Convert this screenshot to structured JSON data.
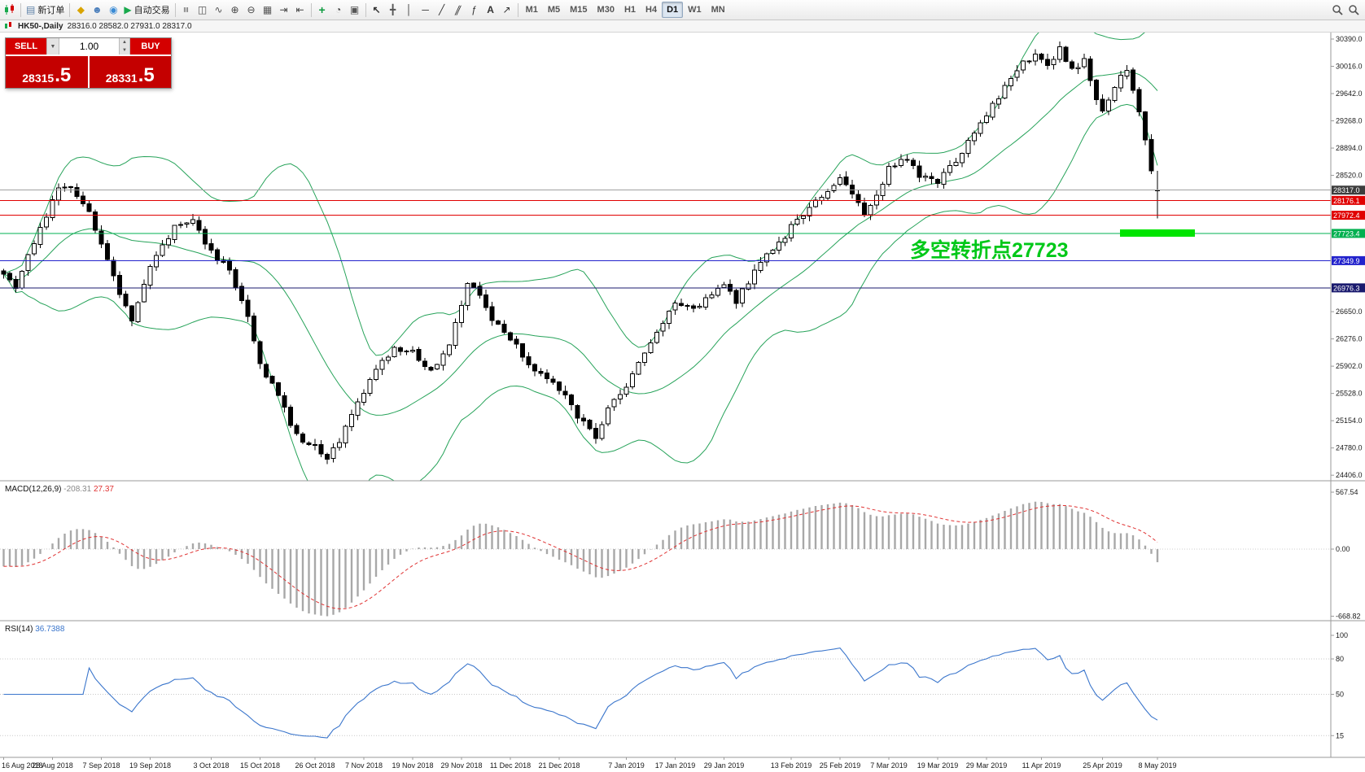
{
  "header": {
    "symbol_title": "HK50-,Daily",
    "ohlc_text": "28316.0 28582.0 27931.0 28317.0"
  },
  "toolbar": {
    "icon_groups": [
      [
        {
          "name": "new-order-button",
          "icon": "new-order",
          "label": "新订单"
        }
      ],
      [
        {
          "name": "metaeditor-icon",
          "icon": "metaeditor"
        },
        {
          "name": "profile-icon",
          "icon": "profile"
        },
        {
          "name": "support-icon",
          "icon": "support"
        },
        {
          "name": "autotrading-button",
          "icon": "autotrading",
          "label": "自动交易"
        }
      ],
      [
        {
          "name": "bar-chart-icon",
          "icon": "bar-chart"
        },
        {
          "name": "candlestick-chart-icon",
          "icon": "candle-chart"
        },
        {
          "name": "line-chart-icon",
          "icon": "line-chart"
        },
        {
          "name": "zoom-in-icon",
          "icon": "zoom-in"
        },
        {
          "name": "zoom-out-icon",
          "icon": "zoom-out"
        },
        {
          "name": "tile-windows-icon",
          "icon": "tile"
        },
        {
          "name": "auto-scroll-icon",
          "icon": "autoscroll"
        },
        {
          "name": "chart-shift-icon",
          "icon": "shift"
        }
      ],
      [
        {
          "name": "indicators-icon",
          "icon": "indicators"
        },
        {
          "name": "periods-icon",
          "icon": "periods"
        },
        {
          "name": "templates-icon",
          "icon": "templates"
        }
      ],
      [
        {
          "name": "cursor-icon",
          "icon": "cursor"
        },
        {
          "name": "crosshair-icon",
          "icon": "crosshair"
        },
        {
          "name": "vertical-line-icon",
          "icon": "vline"
        },
        {
          "name": "horizontal-line-icon",
          "icon": "hline"
        },
        {
          "name": "trendline-icon",
          "icon": "trendline"
        },
        {
          "name": "channel-icon",
          "icon": "channel"
        },
        {
          "name": "fibonacci-icon",
          "icon": "fibonacci"
        },
        {
          "name": "text-icon",
          "icon": "text"
        },
        {
          "name": "arrows-icon",
          "icon": "arrows"
        }
      ]
    ],
    "timeframes": [
      "M1",
      "M5",
      "M15",
      "M30",
      "H1",
      "H4",
      "D1",
      "W1",
      "MN"
    ],
    "active_timeframe": "D1",
    "right_icons": [
      {
        "name": "search-icon"
      },
      {
        "name": "quick-search-icon"
      }
    ]
  },
  "trade_panel": {
    "sell_label": "SELL",
    "buy_label": "BUY",
    "volume": "1.00",
    "caret_glyph": "▼",
    "spin_up_glyph": "▲",
    "spin_down_glyph": "▼",
    "sell_price_main": "28315",
    "sell_price_frac": ".5",
    "buy_price_main": "28331",
    "buy_price_frac": ".5"
  },
  "price_axis": {
    "plain_labels": [
      [
        "30390.0",
        30390
      ],
      [
        "30016.0",
        30016
      ],
      [
        "29642.0",
        29642
      ],
      [
        "29268.0",
        29268
      ],
      [
        "28894.0",
        28894
      ],
      [
        "28520.0",
        28520
      ],
      [
        "26650.0",
        26650
      ],
      [
        "26276.0",
        26276
      ],
      [
        "25902.0",
        25902
      ],
      [
        "25528.0",
        25528
      ],
      [
        "25154.0",
        25154
      ],
      [
        "24780.0",
        24780
      ],
      [
        "24406.0",
        24406
      ]
    ]
  },
  "hlines": [
    {
      "name": "current-price-line",
      "label": "28317.0",
      "price": 28317.0,
      "line_color": "#a0a0a0",
      "badge_color": "#3d3d3d"
    },
    {
      "name": "resistance-line-1",
      "label": "28176.1",
      "price": 28176.1,
      "line_color": "#e00000",
      "badge_color": "#e00000"
    },
    {
      "name": "resistance-line-2",
      "label": "27972.4",
      "price": 27972.4,
      "line_color": "#e00000",
      "badge_color": "#e00000"
    },
    {
      "name": "pivot-line",
      "label": "27723.4",
      "price": 27723.4,
      "line_color": "#00b050",
      "badge_color": "#00b050"
    },
    {
      "name": "support-line-1",
      "label": "27349.9",
      "price": 27349.9,
      "line_color": "#2222cc",
      "badge_color": "#2222cc"
    },
    {
      "name": "support-line-2",
      "label": "26976.3",
      "price": 26976.3,
      "line_color": "#1a1a6e",
      "badge_color": "#1a1a6e"
    }
  ],
  "annotation": {
    "text": "多空转折点27723",
    "color": "#00c818"
  },
  "highlight": {
    "color": "#00e400",
    "price": 27790
  },
  "date_axis": {
    "ticks": [
      [
        0,
        "16 Aug 2018"
      ],
      [
        8,
        "28 Aug 2018"
      ],
      [
        16,
        "7 Sep 2018"
      ],
      [
        24,
        "19 Sep 2018"
      ],
      [
        34,
        "3 Oct 2018"
      ],
      [
        42,
        "15 Oct 2018"
      ],
      [
        51,
        "26 Oct 2018"
      ],
      [
        59,
        "7 Nov 2018"
      ],
      [
        67,
        "19 Nov 2018"
      ],
      [
        75,
        "29 Nov 2018"
      ],
      [
        83,
        "11 Dec 2018"
      ],
      [
        91,
        "21 Dec 2018"
      ],
      [
        102,
        "7 Jan 2019"
      ],
      [
        110,
        "17 Jan 2019"
      ],
      [
        118,
        "29 Jan 2019"
      ],
      [
        129,
        "13 Feb 2019"
      ],
      [
        137,
        "25 Feb 2019"
      ],
      [
        145,
        "7 Mar 2019"
      ],
      [
        153,
        "19 Mar 2019"
      ],
      [
        161,
        "29 Mar 2019"
      ],
      [
        170,
        "11 Apr 2019"
      ],
      [
        180,
        "25 Apr 2019"
      ],
      [
        189,
        "8 May 2019"
      ]
    ]
  },
  "indicators": {
    "macd": {
      "title": "MACD(12,26,9)",
      "value1": "-208.31",
      "value2": "27.37",
      "scale_labels": [
        [
          "567.54",
          567.54
        ],
        [
          "0.00",
          0
        ],
        [
          "-668.82",
          -668.82
        ]
      ],
      "scale_max": 567.54,
      "scale_min": -668.82,
      "histogram_color": "#a8a8a8",
      "signal_color": "#e03232"
    },
    "rsi": {
      "title": "RSI(14)",
      "value": "36.7388",
      "period": 14,
      "line_color": "#3b76cc",
      "levels": [
        [
          "100",
          100
        ],
        [
          "80",
          80
        ],
        [
          "50",
          50
        ],
        [
          "15",
          15
        ]
      ]
    }
  },
  "chart_data": {
    "type": "candlestick",
    "symbol": "HK50-",
    "timeframe": "Daily",
    "bars": 190,
    "price_range": {
      "min": 24406,
      "max": 30390
    },
    "last_candle": {
      "open": 28316.0,
      "high": 28582.0,
      "low": 27931.0,
      "close": 28317.0
    },
    "noise": 90,
    "candle_colors": {
      "up": "#ffffff",
      "down": "#000000",
      "border": "#000000"
    },
    "bollinger": {
      "period": 20,
      "deviation": 2,
      "color": "#27a35a"
    },
    "close_anchors": [
      [
        0,
        27150
      ],
      [
        2,
        27000
      ],
      [
        4,
        27400
      ],
      [
        6,
        27800
      ],
      [
        9,
        28350
      ],
      [
        11,
        28400
      ],
      [
        14,
        28000
      ],
      [
        16,
        27550
      ],
      [
        19,
        26900
      ],
      [
        21,
        26500
      ],
      [
        24,
        27250
      ],
      [
        28,
        27800
      ],
      [
        31,
        27950
      ],
      [
        34,
        27450
      ],
      [
        37,
        27200
      ],
      [
        40,
        26600
      ],
      [
        42,
        25900
      ],
      [
        45,
        25500
      ],
      [
        48,
        24950
      ],
      [
        51,
        24800
      ],
      [
        53,
        24650
      ],
      [
        55,
        24900
      ],
      [
        58,
        25400
      ],
      [
        61,
        25900
      ],
      [
        64,
        26150
      ],
      [
        67,
        26100
      ],
      [
        70,
        25850
      ],
      [
        73,
        26200
      ],
      [
        76,
        27050
      ],
      [
        78,
        26900
      ],
      [
        80,
        26500
      ],
      [
        83,
        26300
      ],
      [
        86,
        25900
      ],
      [
        89,
        25700
      ],
      [
        91,
        25600
      ],
      [
        94,
        25200
      ],
      [
        97,
        24950
      ],
      [
        99,
        25300
      ],
      [
        102,
        25600
      ],
      [
        105,
        26100
      ],
      [
        108,
        26500
      ],
      [
        110,
        26800
      ],
      [
        113,
        26700
      ],
      [
        116,
        26900
      ],
      [
        118,
        27050
      ],
      [
        120,
        26800
      ],
      [
        123,
        27200
      ],
      [
        126,
        27500
      ],
      [
        129,
        27800
      ],
      [
        132,
        28100
      ],
      [
        135,
        28300
      ],
      [
        137,
        28450
      ],
      [
        139,
        28300
      ],
      [
        141,
        28000
      ],
      [
        143,
        28250
      ],
      [
        145,
        28600
      ],
      [
        148,
        28750
      ],
      [
        150,
        28500
      ],
      [
        153,
        28450
      ],
      [
        156,
        28700
      ],
      [
        158,
        29000
      ],
      [
        161,
        29350
      ],
      [
        163,
        29600
      ],
      [
        165,
        29850
      ],
      [
        167,
        30050
      ],
      [
        169,
        30150
      ],
      [
        171,
        30050
      ],
      [
        173,
        30250
      ],
      [
        175,
        29950
      ],
      [
        177,
        30100
      ],
      [
        179,
        29600
      ],
      [
        180,
        29400
      ],
      [
        182,
        29750
      ],
      [
        184,
        29950
      ],
      [
        186,
        29400
      ],
      [
        187,
        29000
      ],
      [
        188,
        28582
      ],
      [
        189,
        28317
      ]
    ]
  }
}
